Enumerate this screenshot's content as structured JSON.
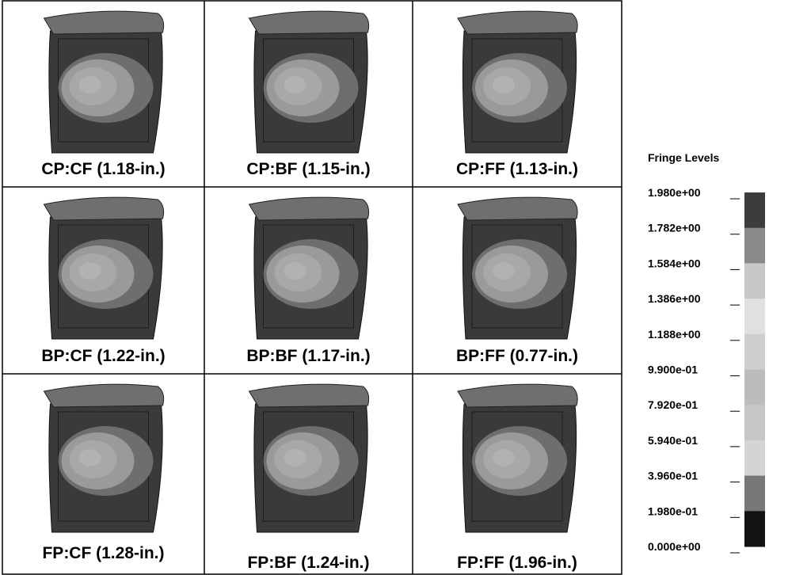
{
  "panels": [
    "CP:CF (1.18-in.)",
    "CP:BF (1.15-in.)",
    "CP:FF (1.13-in.)",
    "BP:CF (1.22-in.)",
    "BP:BF (1.17-in.)",
    "BP:FF (0.77-in.)",
    "FP:CF (1.28-in.)",
    "FP:BF (1.24-in.)",
    "FP:FF (1.96-in.)"
  ],
  "legend": {
    "title": "Fringe Levels",
    "levels": [
      "1.980e+00",
      "1.782e+00",
      "1.584e+00",
      "1.386e+00",
      "1.188e+00",
      "9.900e-01",
      "7.920e-01",
      "5.940e-01",
      "3.960e-01",
      "1.980e-01",
      "0.000e+00"
    ]
  }
}
